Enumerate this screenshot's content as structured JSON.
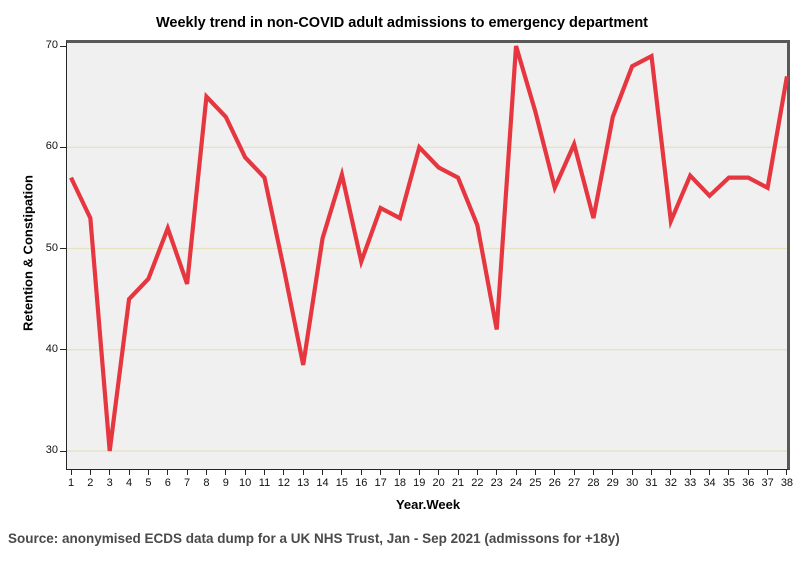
{
  "chart": {
    "title": "Weekly trend in non-COVID adult admissions to emergency department",
    "xlabel": "Year.Week",
    "ylabel": "Retention & Constipation",
    "source": "Source: anonymised ECDS data dump for a UK NHS Trust, Jan - Sep 2021 (admissons for +18y)"
  },
  "chart_data": {
    "type": "line",
    "title": "Weekly trend in non-COVID adult admissions to emergency department",
    "xlabel": "Year.Week",
    "ylabel": "Retention & Constipation",
    "x": [
      1,
      2,
      3,
      4,
      5,
      6,
      7,
      8,
      9,
      10,
      11,
      12,
      13,
      14,
      15,
      16,
      17,
      18,
      19,
      20,
      21,
      22,
      23,
      24,
      25,
      26,
      27,
      28,
      29,
      30,
      31,
      32,
      33,
      34,
      35,
      36,
      37,
      38
    ],
    "values": [
      57,
      53,
      30,
      45,
      47,
      52,
      46.5,
      65,
      63,
      59,
      57,
      48,
      38.5,
      51,
      57.3,
      48.7,
      54,
      53,
      60,
      58,
      57,
      52.3,
      42,
      70,
      63.5,
      56,
      60.3,
      53,
      63,
      68,
      69,
      52.7,
      57.2,
      55.2,
      57,
      57,
      56,
      67
    ],
    "ylim": [
      30,
      70
    ],
    "y_ticks": [
      30,
      40,
      50,
      60,
      70
    ],
    "grid": "horizontal",
    "legend": "none",
    "line_color": "#e63741",
    "plot_bg": "#f0f0f0",
    "grid_color": "#e4e1c0",
    "frame_color": "#595959",
    "axis_color": "#262626",
    "source_note": "Source: anonymised ECDS data dump for a UK NHS Trust, Jan - Sep 2021 (admissons for +18y)"
  }
}
